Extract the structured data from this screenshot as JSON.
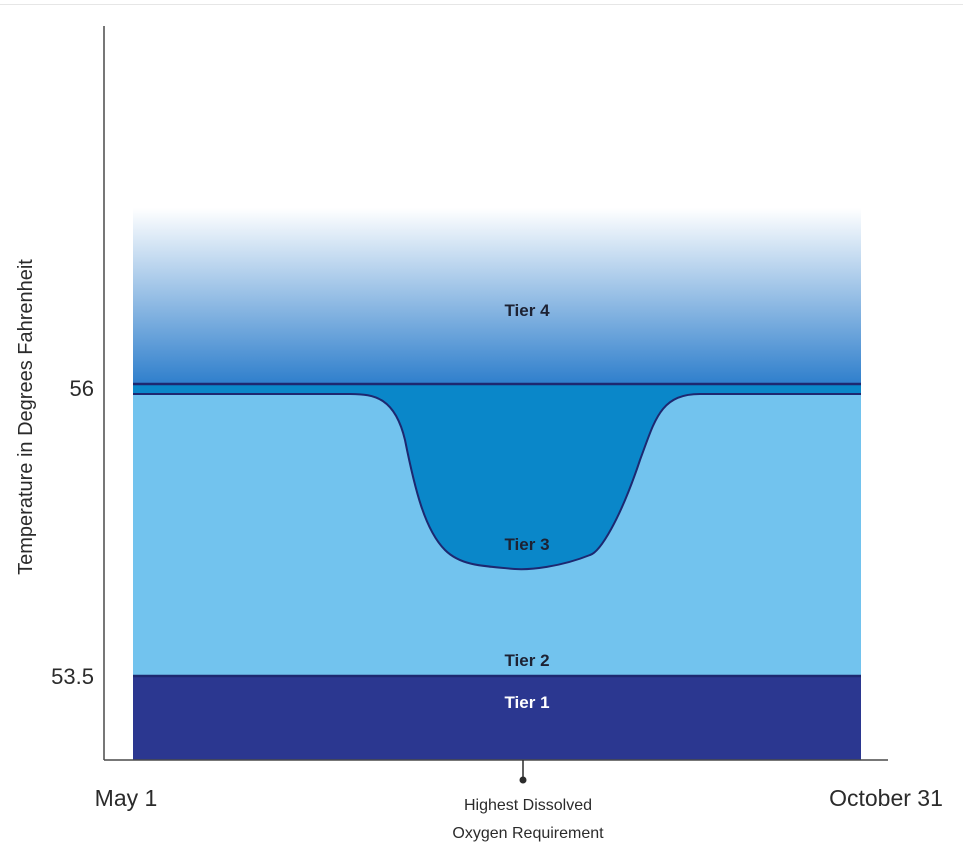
{
  "chart_data": {
    "type": "area",
    "title": "",
    "xlabel": "",
    "ylabel": "Temperature in Degrees Fahrenheit",
    "x_ticks": [
      "May 1",
      "October 31"
    ],
    "y_ticks": [
      56,
      53.5
    ],
    "y_tick_labels": [
      "56",
      "53.5"
    ],
    "annotation": [
      "Highest Dissolved",
      "Oxygen Requirement"
    ],
    "tiers": [
      {
        "name": "Tier 4",
        "color": "#2f7fcc"
      },
      {
        "name": "Tier 3",
        "color": "#0a87c9"
      },
      {
        "name": "Tier 2",
        "color": "#72c3ee"
      },
      {
        "name": "Tier 1",
        "color": "#2b3790"
      }
    ],
    "tier_boundaries": {
      "tier1_tier2": 53.5,
      "tier3_tier4": 56,
      "tier3_min_at_peak": 54.8
    },
    "colors": {
      "tier4_light": "#ffffff",
      "tier4_dark": "#2f7fcc",
      "tier3": "#0a87c9",
      "tier2": "#72c3ee",
      "tier1": "#2b3790",
      "boundary_line": "#1d2870",
      "tier1_label": "#ffffff",
      "tier_label": "#1d2233"
    }
  }
}
